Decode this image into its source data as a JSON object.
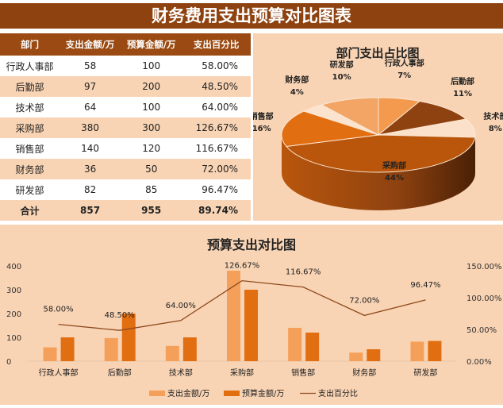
{
  "title": "财务费用支出预算对比图表",
  "table": {
    "headers": [
      "部门",
      "支出金额/万",
      "预算金额/万",
      "支出百分比"
    ],
    "rows": [
      [
        "行政人事部",
        "58",
        "100",
        "58.00%"
      ],
      [
        "后勤部",
        "97",
        "200",
        "48.50%"
      ],
      [
        "技术部",
        "64",
        "100",
        "64.00%"
      ],
      [
        "采购部",
        "380",
        "300",
        "126.67%"
      ],
      [
        "销售部",
        "140",
        "120",
        "116.67%"
      ],
      [
        "财务部",
        "36",
        "50",
        "72.00%"
      ],
      [
        "研发部",
        "82",
        "85",
        "96.47%"
      ]
    ],
    "total": [
      "合计",
      "857",
      "955",
      "89.74%"
    ]
  },
  "chart_data": [
    {
      "type": "pie",
      "title": "部门支出占比图",
      "style": "3d",
      "categories": [
        "行政人事部",
        "后勤部",
        "技术部",
        "采购部",
        "销售部",
        "财务部",
        "研发部"
      ],
      "values": [
        7,
        11,
        8,
        44,
        16,
        4,
        10
      ],
      "labels": [
        "7%",
        "11%",
        "8%",
        "44%",
        "16%",
        "4%",
        "10%"
      ],
      "colors": [
        "#F39A4E",
        "#8E4210",
        "#FBE1CA",
        "#B9560C",
        "#E26E12",
        "#FBE3CE",
        "#F2A565"
      ]
    },
    {
      "type": "bar",
      "title": "预算支出对比图",
      "categories": [
        "行政人事部",
        "后勤部",
        "技术部",
        "采购部",
        "销售部",
        "财务部",
        "研发部"
      ],
      "series": [
        {
          "name": "支出金额/万",
          "type": "bar",
          "values": [
            58,
            97,
            64,
            380,
            140,
            36,
            82
          ],
          "color": "#F5A05A"
        },
        {
          "name": "预算金额/万",
          "type": "bar",
          "values": [
            100,
            200,
            100,
            300,
            120,
            50,
            85
          ],
          "color": "#E26E12"
        },
        {
          "name": "支出百分比",
          "type": "line",
          "axis": "right",
          "values": [
            58.0,
            48.5,
            64.0,
            126.67,
            116.67,
            72.0,
            96.47
          ],
          "labels": [
            "58.00%",
            "48.50%",
            "64.00%",
            "126.67%",
            "116.67%",
            "72.00%",
            "96.47%"
          ],
          "color": "#8E4A1E"
        }
      ],
      "ylim": [
        0,
        400
      ],
      "yticks": [
        "0",
        "100",
        "200",
        "300",
        "400"
      ],
      "y2lim": [
        0,
        150
      ],
      "y2ticks": [
        "0.00%",
        "50.00%",
        "100.00%",
        "150.00%"
      ],
      "legend": "bottom",
      "grid": false
    }
  ]
}
